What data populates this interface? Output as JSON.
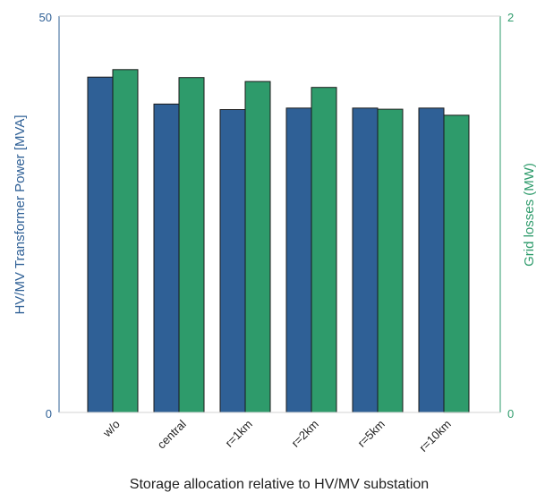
{
  "chart_data": {
    "type": "bar",
    "categories": [
      "w/o",
      "central",
      "r=1km",
      "r=2km",
      "r=5km",
      "r=10km"
    ],
    "xlabel": "Storage allocation relative to HV/MV substation",
    "left_axis": {
      "label": "HV/MV Transformer Power [MVA]",
      "ylim": [
        0,
        50
      ],
      "ticks": [
        "0",
        "50"
      ],
      "color": "#2f6096"
    },
    "right_axis": {
      "label": "Grid losses (MW)",
      "ylim": [
        0,
        2
      ],
      "ticks": [
        "0",
        "2"
      ],
      "color": "#2e9b6b"
    },
    "series": [
      {
        "axis": "left",
        "color": "#2f6096",
        "values": [
          42.3,
          38.9,
          38.2,
          38.4,
          38.4,
          38.4
        ]
      },
      {
        "axis": "right",
        "color": "#2e9b6b",
        "values": [
          1.73,
          1.69,
          1.67,
          1.64,
          1.53,
          1.5
        ]
      }
    ],
    "grid": false,
    "legend": "none"
  }
}
